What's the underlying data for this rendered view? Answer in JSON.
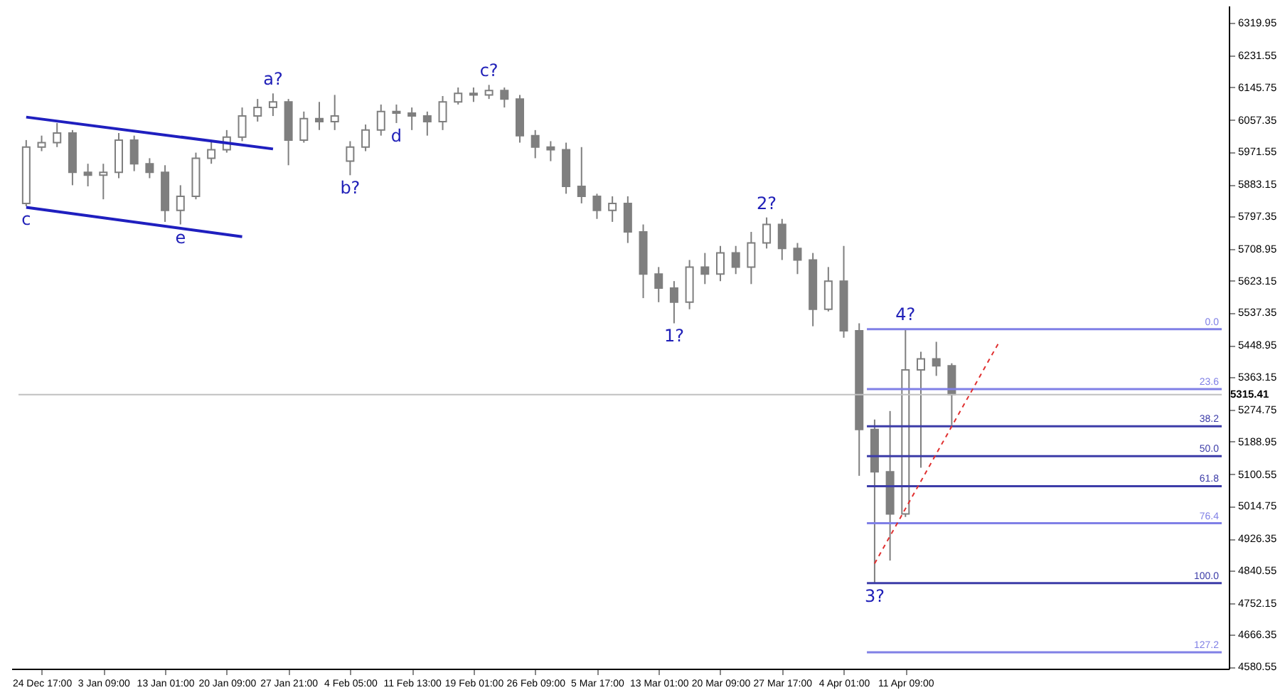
{
  "chart_data": {
    "type": "candlestick",
    "color": "#7f7f7f",
    "categories": [
      null,
      "24 Dec 17:00",
      null,
      null,
      null,
      "3 Jan 09:00",
      null,
      null,
      null,
      "13 Jan 01:00",
      null,
      null,
      null,
      "20 Jan 09:00",
      null,
      null,
      null,
      "27 Jan 21:00",
      null,
      null,
      null,
      "4 Feb 05:00",
      null,
      null,
      null,
      "11 Feb 13:00",
      null,
      null,
      null,
      "19 Feb 01:00",
      null,
      null,
      null,
      "26 Feb 09:00",
      null,
      null,
      null,
      "5 Mar 17:00",
      null,
      null,
      null,
      "13 Mar 01:00",
      null,
      null,
      null,
      "20 Mar 09:00",
      null,
      null,
      null,
      "27 Mar 17:00",
      null,
      null,
      null,
      "4 Apr 01:00",
      null,
      null,
      null,
      "11 Apr 09:00",
      null,
      null,
      null,
      null,
      null,
      null,
      null,
      null,
      null,
      null,
      null,
      null,
      null,
      null,
      null,
      null,
      null,
      null,
      null,
      null
    ],
    "ohlc": [
      [
        5832,
        6003,
        5824,
        5984
      ],
      [
        5984,
        6015,
        5973,
        5996
      ],
      [
        5996,
        6049,
        5984,
        6022
      ],
      [
        6022,
        6030,
        5881,
        5916
      ],
      [
        5916,
        5939,
        5878,
        5908
      ],
      [
        5908,
        5939,
        5843,
        5916
      ],
      [
        5916,
        6022,
        5900,
        6003
      ],
      [
        6003,
        6015,
        5919,
        5939
      ],
      [
        5939,
        5954,
        5900,
        5916
      ],
      [
        5916,
        5935,
        5782,
        5813
      ],
      [
        5813,
        5881,
        5775,
        5851
      ],
      [
        5851,
        5969,
        5843,
        5954
      ],
      [
        5954,
        6000,
        5939,
        5977
      ],
      [
        5977,
        6030,
        5969,
        6011
      ],
      [
        6011,
        6091,
        6000,
        6068
      ],
      [
        6068,
        6114,
        6053,
        6091
      ],
      [
        6091,
        6129,
        6068,
        6106
      ],
      [
        6106,
        6114,
        5935,
        6003
      ],
      [
        6003,
        6080,
        5996,
        6061
      ],
      [
        6061,
        6106,
        6030,
        6053
      ],
      [
        6053,
        6125,
        6030,
        6068
      ],
      [
        5946,
        6000,
        5908,
        5984
      ],
      [
        5984,
        6045,
        5973,
        6030
      ],
      [
        6030,
        6099,
        6015,
        6080
      ],
      [
        6080,
        6099,
        6049,
        6076
      ],
      [
        6076,
        6091,
        6030,
        6068
      ],
      [
        6068,
        6080,
        6015,
        6053
      ],
      [
        6053,
        6122,
        6030,
        6106
      ],
      [
        6106,
        6145,
        6099,
        6129
      ],
      [
        6129,
        6145,
        6106,
        6125
      ],
      [
        6125,
        6152,
        6114,
        6137
      ],
      [
        6137,
        6145,
        6091,
        6114
      ],
      [
        6114,
        6125,
        5996,
        6015
      ],
      [
        6015,
        6030,
        5954,
        5984
      ],
      [
        5984,
        6000,
        5946,
        5977
      ],
      [
        5977,
        5996,
        5858,
        5878
      ],
      [
        5878,
        5984,
        5832,
        5851
      ],
      [
        5851,
        5858,
        5790,
        5813
      ],
      [
        5813,
        5851,
        5782,
        5832
      ],
      [
        5832,
        5851,
        5725,
        5755
      ],
      [
        5755,
        5775,
        5576,
        5641
      ],
      [
        5641,
        5660,
        5565,
        5603
      ],
      [
        5603,
        5622,
        5508,
        5565
      ],
      [
        5565,
        5679,
        5546,
        5660
      ],
      [
        5660,
        5698,
        5614,
        5641
      ],
      [
        5641,
        5717,
        5622,
        5698
      ],
      [
        5698,
        5717,
        5641,
        5660
      ],
      [
        5660,
        5755,
        5614,
        5725
      ],
      [
        5725,
        5794,
        5710,
        5775
      ],
      [
        5775,
        5790,
        5679,
        5710
      ],
      [
        5710,
        5725,
        5641,
        5679
      ],
      [
        5679,
        5698,
        5500,
        5546
      ],
      [
        5546,
        5660,
        5540,
        5622
      ],
      [
        5622,
        5717,
        5469,
        5488
      ],
      [
        5488,
        5508,
        5096,
        5221
      ],
      [
        5221,
        5248,
        4805,
        5107
      ],
      [
        5107,
        5271,
        4867,
        4993
      ],
      [
        4993,
        5493,
        4985,
        5382
      ],
      [
        5382,
        5431,
        5118,
        5412
      ],
      [
        5412,
        5458,
        5366,
        5393
      ],
      [
        5393,
        5400,
        5233,
        5315.41
      ],
      null,
      null,
      null,
      null,
      null,
      null,
      null,
      null,
      null,
      null,
      null,
      null,
      null,
      null,
      null,
      null,
      null
    ],
    "series": [
      {
        "type": "line",
        "values": [
          6065,
          null,
          null,
          null,
          null,
          null,
          null,
          null,
          null,
          null,
          null,
          null,
          null,
          null,
          null,
          null,
          5979,
          null,
          null,
          null,
          null,
          null,
          null,
          null,
          null,
          null,
          null,
          null,
          null,
          null,
          null,
          null,
          null,
          null,
          null,
          null,
          null,
          null,
          null,
          null,
          null,
          null,
          null,
          null,
          null,
          null,
          null,
          null,
          null,
          null,
          null,
          null,
          null,
          null,
          null,
          null,
          null,
          null,
          null,
          null,
          null,
          null,
          null,
          null,
          null,
          null,
          null,
          null,
          null,
          null,
          null,
          null,
          null,
          null,
          null,
          null,
          null,
          null
        ],
        "color": "#1f1fbf",
        "line_style": "solid"
      },
      {
        "type": "line",
        "values": [
          5821,
          null,
          null,
          null,
          null,
          null,
          null,
          null,
          null,
          null,
          null,
          null,
          null,
          null,
          5742,
          null,
          null,
          null,
          null,
          null,
          null,
          null,
          null,
          null,
          null,
          null,
          null,
          null,
          null,
          null,
          null,
          null,
          null,
          null,
          null,
          null,
          null,
          null,
          null,
          null,
          null,
          null,
          null,
          null,
          null,
          null,
          null,
          null,
          null,
          null,
          null,
          null,
          null,
          null,
          null,
          null,
          null,
          null,
          null,
          null,
          null,
          null,
          null,
          null,
          null,
          null,
          null,
          null,
          null,
          null,
          null,
          null,
          null,
          null,
          null,
          null,
          null,
          null
        ],
        "color": "#1f1fbf",
        "line_style": "solid"
      },
      {
        "type": "line",
        "values": [
          null,
          null,
          null,
          null,
          null,
          null,
          null,
          null,
          null,
          null,
          null,
          null,
          null,
          null,
          null,
          null,
          null,
          null,
          null,
          null,
          null,
          null,
          null,
          null,
          null,
          null,
          null,
          null,
          null,
          null,
          null,
          null,
          null,
          null,
          null,
          null,
          null,
          null,
          null,
          null,
          null,
          null,
          null,
          null,
          null,
          null,
          null,
          null,
          null,
          null,
          null,
          null,
          null,
          null,
          null,
          4859,
          null,
          null,
          null,
          null,
          null,
          null,
          null,
          5452,
          null,
          null,
          null,
          null,
          null,
          null,
          null,
          null,
          null,
          null,
          null,
          null,
          null,
          null
        ],
        "color": "#e03030",
        "line_style": "dashed"
      }
    ],
    "ylim": [
      4575,
      6366
    ],
    "yticks": [
      6319.95,
      6231.55,
      6145.75,
      6057.35,
      5971.55,
      5883.15,
      5797.35,
      5708.95,
      5623.15,
      5537.35,
      5448.95,
      5363.15,
      5274.75,
      5188.95,
      5100.55,
      5014.75,
      4926.35,
      4840.55,
      4752.15,
      4666.35,
      4580.55
    ],
    "ref_lines": [
      {
        "axis": "y",
        "value": 5315.41,
        "label": "5315.41",
        "color": "#c0c0c0"
      },
      {
        "axis": "y",
        "value": 5492,
        "color": "#8080e6"
      },
      {
        "axis": "y",
        "value": 5330.1,
        "color": "#8080e6"
      },
      {
        "axis": "y",
        "value": 5229.9,
        "color": "#3c3ca8"
      },
      {
        "axis": "y",
        "value": 5149,
        "color": "#3c3ca8"
      },
      {
        "axis": "y",
        "value": 5068,
        "color": "#3c3ca8"
      },
      {
        "axis": "y",
        "value": 4967.9,
        "color": "#8080e6"
      },
      {
        "axis": "y",
        "value": 4806,
        "color": "#3c3ca8"
      },
      {
        "axis": "y",
        "value": 4619.4,
        "color": "#8080e6"
      }
    ],
    "annotations": [
      {
        "text": "c",
        "y": 5824
      },
      {
        "text": "d",
        "y": 6049
      },
      {
        "text": "e",
        "y": 5775
      },
      {
        "text": "a?",
        "y": 6129
      },
      {
        "text": "b?",
        "y": 5908
      },
      {
        "text": "c?",
        "y": 6152
      },
      {
        "text": "1?",
        "y": 5508
      },
      {
        "text": "2?",
        "y": 5794
      },
      {
        "text": "3?",
        "y": 4805
      },
      {
        "text": "4?",
        "y": 5493
      },
      {
        "text": "0.0",
        "y": 5492
      },
      {
        "text": "23.6",
        "y": 5330.1
      },
      {
        "text": "38.2",
        "y": 5229.9
      },
      {
        "text": "50.0",
        "y": 5149
      },
      {
        "text": "61.8",
        "y": 5068
      },
      {
        "text": "76.4",
        "y": 4967.9
      },
      {
        "text": "100.0",
        "y": 4806
      },
      {
        "text": "127.2",
        "y": 4619.4
      }
    ],
    "grid": false
  }
}
